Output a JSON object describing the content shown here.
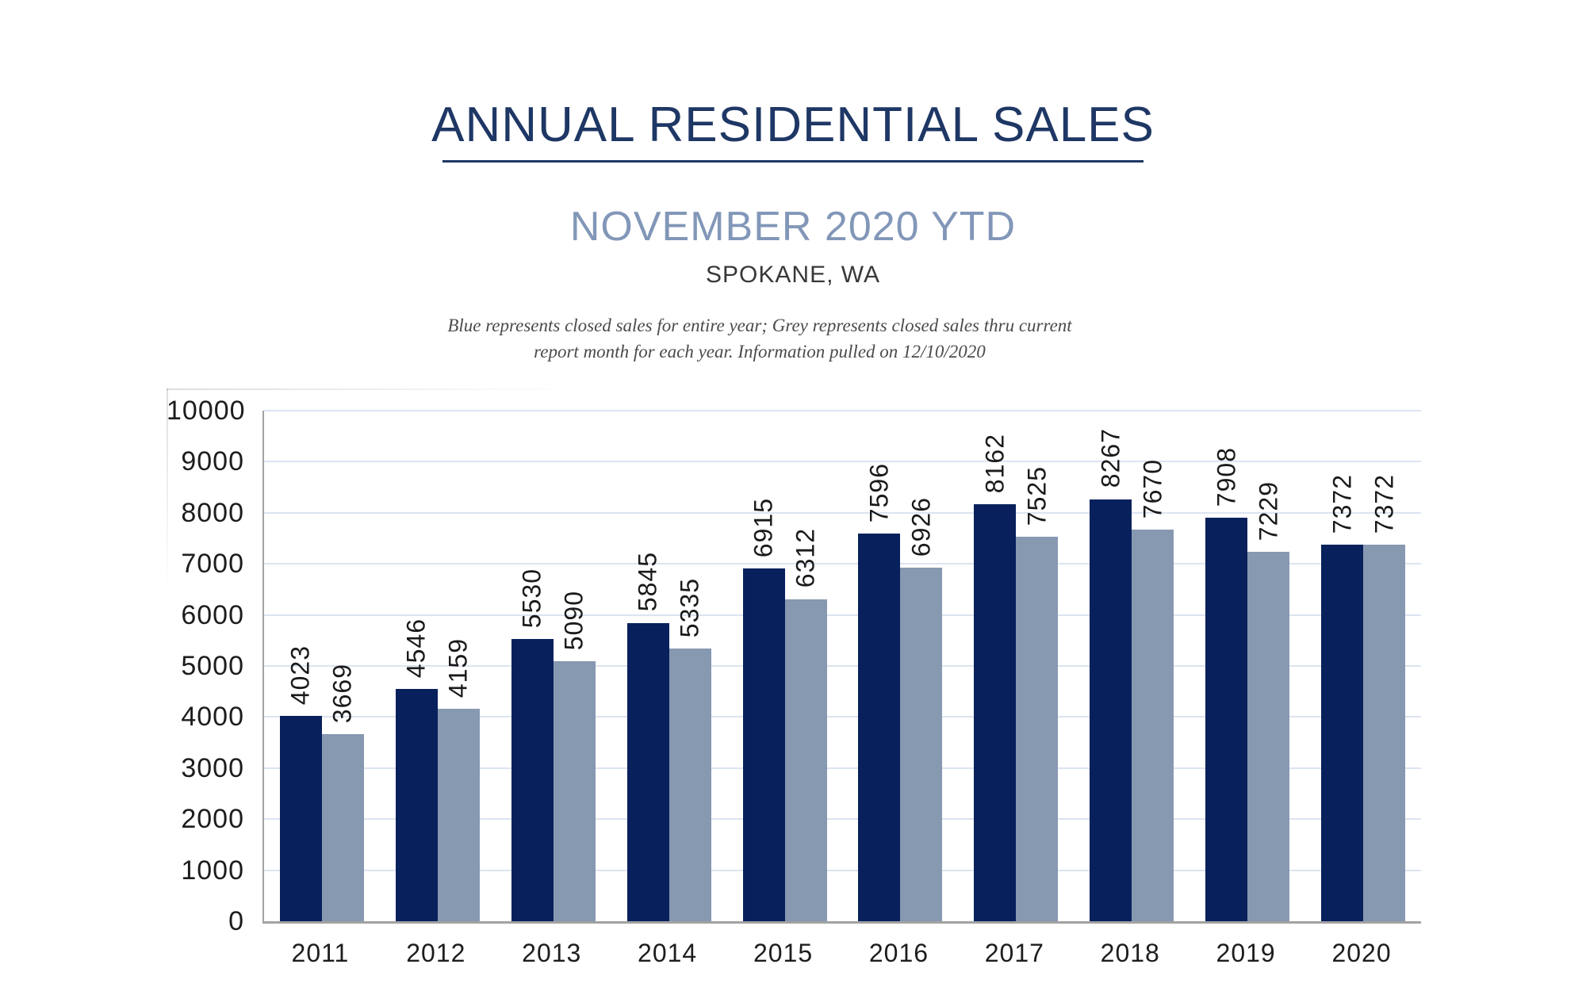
{
  "header": {
    "title": "ANNUAL RESIDENTIAL SALES",
    "subtitle": "NOVEMBER 2020 YTD",
    "location": "SPOKANE, WA",
    "note_line1": "Blue represents closed sales for entire year; Grey represents closed sales thru current",
    "note_line2": "report month for each year.  Information pulled on 12/10/2020"
  },
  "colors": {
    "title_navy": "#1E3765",
    "subtitle_blue": "#8297B8",
    "location_text": "#383838",
    "note_text": "#4A4A4A",
    "bar_navy": "#08215C",
    "bar_grey": "#8798B1",
    "gridline": "#DCE4F1",
    "axis_line": "#A2A2A2",
    "tick_text": "#1D1D1D",
    "label_text": "#1A1A1A"
  },
  "chart_data": {
    "type": "bar",
    "title": "ANNUAL RESIDENTIAL SALES",
    "subtitle": "NOVEMBER 2020 YTD",
    "xlabel": "",
    "ylabel": "",
    "categories": [
      "2011",
      "2012",
      "2013",
      "2014",
      "2015",
      "2016",
      "2017",
      "2018",
      "2019",
      "2020"
    ],
    "series": [
      {
        "name": "Blue — closed sales for entire year",
        "color_key": "bar_navy",
        "values": [
          4023,
          4546,
          5530,
          5845,
          6915,
          7596,
          8162,
          8267,
          7908,
          7372
        ]
      },
      {
        "name": "Grey — closed sales thru current report month",
        "color_key": "bar_grey",
        "values": [
          3669,
          4159,
          5090,
          5335,
          6312,
          6926,
          7525,
          7670,
          7229,
          7372
        ]
      }
    ],
    "ylim": [
      0,
      10000
    ],
    "yticks": [
      0,
      1000,
      2000,
      3000,
      4000,
      5000,
      6000,
      7000,
      8000,
      9000,
      10000
    ],
    "grid": true,
    "legend": "none",
    "data_labels": "rotated-90-degrees-above-bars"
  }
}
